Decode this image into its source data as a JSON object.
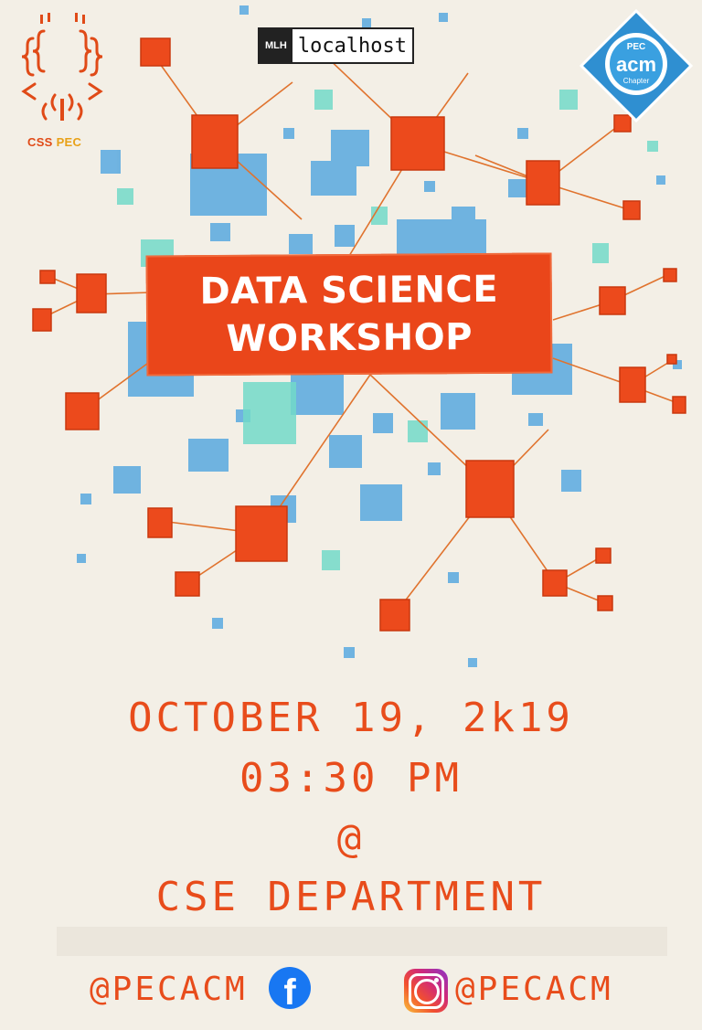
{
  "logos": {
    "css_pec": {
      "part1": "CSS",
      "part2": "PEC"
    },
    "mlh": {
      "tag": "MLH",
      "text": "localhost"
    },
    "acm": {
      "top": "PEC",
      "main": "acm",
      "bottom": "Chapter"
    }
  },
  "title": {
    "line1": "DATA SCIENCE",
    "line2": "WORKSHOP"
  },
  "event": {
    "date": "OCTOBER 19, 2k19",
    "time": "03:30 PM",
    "at": "@",
    "venue": "CSE DEPARTMENT"
  },
  "social": {
    "facebook_handle": "@PECACM",
    "instagram_handle": "@PECACM"
  },
  "colors": {
    "accent": "#e84c1b",
    "blue": "#4ea6e0",
    "teal": "#6dd6c4",
    "background": "#f3efe6"
  },
  "icons": [
    "facebook-icon",
    "instagram-icon"
  ]
}
